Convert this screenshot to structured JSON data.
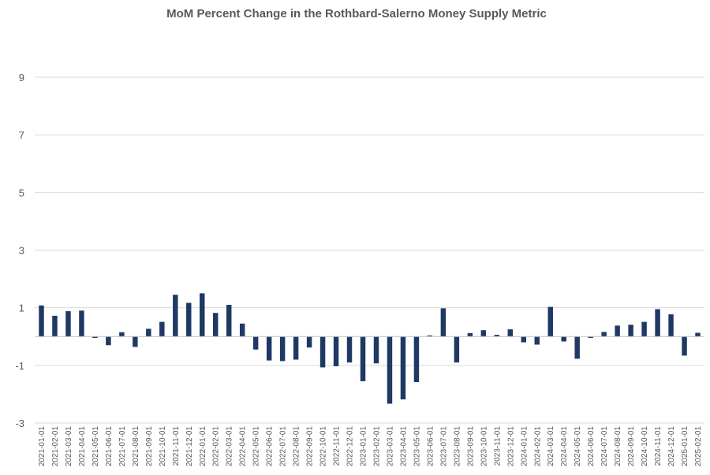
{
  "chart_data": {
    "type": "bar",
    "title": "MoM Percent Change in the Rothbard-Salerno Money Supply Metric",
    "xlabel": "",
    "ylabel": "",
    "ylim": [
      -3,
      9
    ],
    "yticks": [
      9,
      7,
      5,
      3,
      1,
      -1,
      -3
    ],
    "grid": true,
    "bar_color": "#1f3864",
    "categories": [
      "2021-01-01",
      "2021-02-01",
      "2021-03-01",
      "2021-04-01",
      "2021-05-01",
      "2021-06-01",
      "2021-07-01",
      "2021-08-01",
      "2021-09-01",
      "2021-10-01",
      "2021-11-01",
      "2021-12-01",
      "2022-01-01",
      "2022-02-01",
      "2022-03-01",
      "2022-04-01",
      "2022-05-01",
      "2022-06-01",
      "2022-07-01",
      "2022-08-01",
      "2022-09-01",
      "2022-10-01",
      "2022-11-01",
      "2022-12-01",
      "2023-01-01",
      "2023-02-01",
      "2023-03-01",
      "2023-04-01",
      "2023-05-01",
      "2023-06-01",
      "2023-07-01",
      "2023-08-01",
      "2023-09-01",
      "2023-10-01",
      "2023-11-01",
      "2023-12-01",
      "2024-01-01",
      "2024-02-01",
      "2024-03-01",
      "2024-04-01",
      "2024-05-01",
      "2024-06-01",
      "2024-07-01",
      "2024-08-01",
      "2024-09-01",
      "2024-10-01",
      "2024-11-01",
      "2024-12-01",
      "2025-01-01",
      "2025-02-01"
    ],
    "values": [
      1.08,
      0.72,
      0.88,
      0.9,
      -0.05,
      -0.3,
      0.15,
      -0.36,
      0.27,
      0.51,
      1.45,
      1.17,
      1.5,
      0.82,
      1.1,
      0.45,
      -0.45,
      -0.83,
      -0.85,
      -0.8,
      -0.38,
      -1.07,
      -1.03,
      -0.9,
      -1.55,
      -0.93,
      -2.33,
      -2.18,
      -1.58,
      0.04,
      0.98,
      -0.9,
      0.12,
      0.22,
      0.06,
      0.25,
      -0.2,
      -0.28,
      1.03,
      -0.17,
      -0.77,
      -0.05,
      0.16,
      0.38,
      0.41,
      0.51,
      0.95,
      0.77,
      -0.66,
      0.13
    ]
  }
}
